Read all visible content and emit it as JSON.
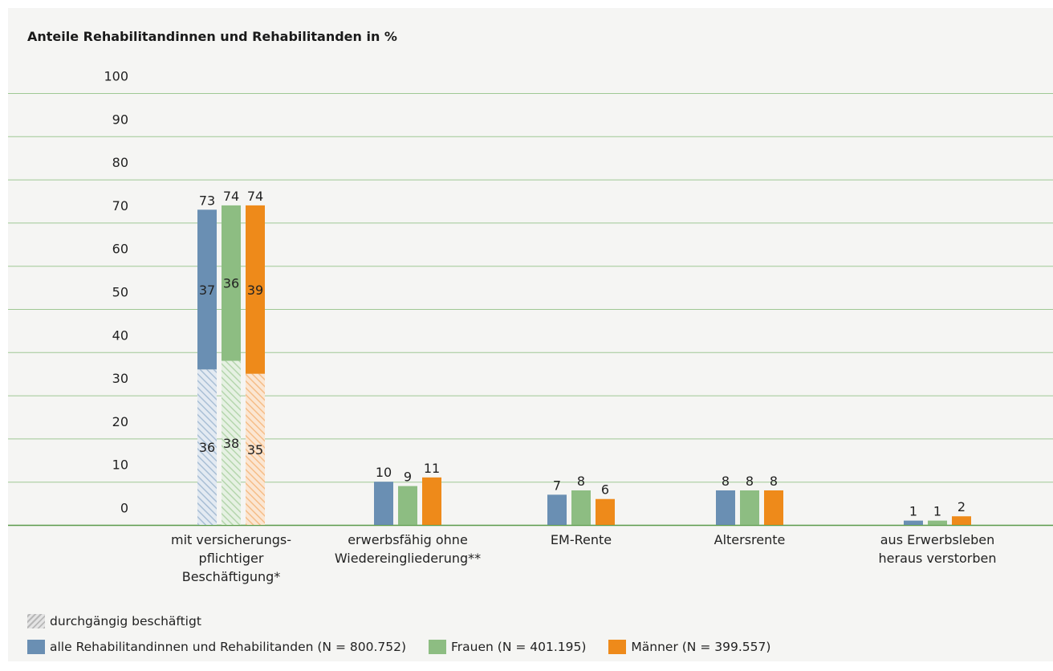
{
  "chart_data": {
    "type": "bar",
    "title": "Anteile Rehabilitandinnen und Rehabilitanden in %",
    "ylim": [
      0,
      100
    ],
    "yticks": [
      0,
      10,
      20,
      30,
      40,
      50,
      60,
      70,
      80,
      90,
      100
    ],
    "grid": true,
    "categories": [
      "mit versicherungs-\npflichtiger\nBeschäftigung*",
      "erwerbsfähig ohne\nWiedereingliederung**",
      "EM-Rente",
      "Altersrente",
      "aus Erwerbsleben\nheraus verstorben"
    ],
    "series": [
      {
        "name": "alle Rehabilitandinnen und Rehabilitanden (N = 800.752)",
        "color": "#6a8fb3",
        "values": [
          73,
          10,
          7,
          8,
          1
        ],
        "stack_lower": 36,
        "stack_upper": 37
      },
      {
        "name": "Frauen (N = 401.195)",
        "color": "#8dbd82",
        "values": [
          74,
          9,
          8,
          8,
          1
        ],
        "stack_lower": 38,
        "stack_upper": 36
      },
      {
        "name": "Männer (N = 399.557)",
        "color": "#ee8a1a",
        "values": [
          74,
          11,
          6,
          8,
          2
        ],
        "stack_lower": 35,
        "stack_upper": 39
      }
    ],
    "hatched_legend": "durchgängig beschäftigt",
    "legend_position": "bottom-left"
  }
}
